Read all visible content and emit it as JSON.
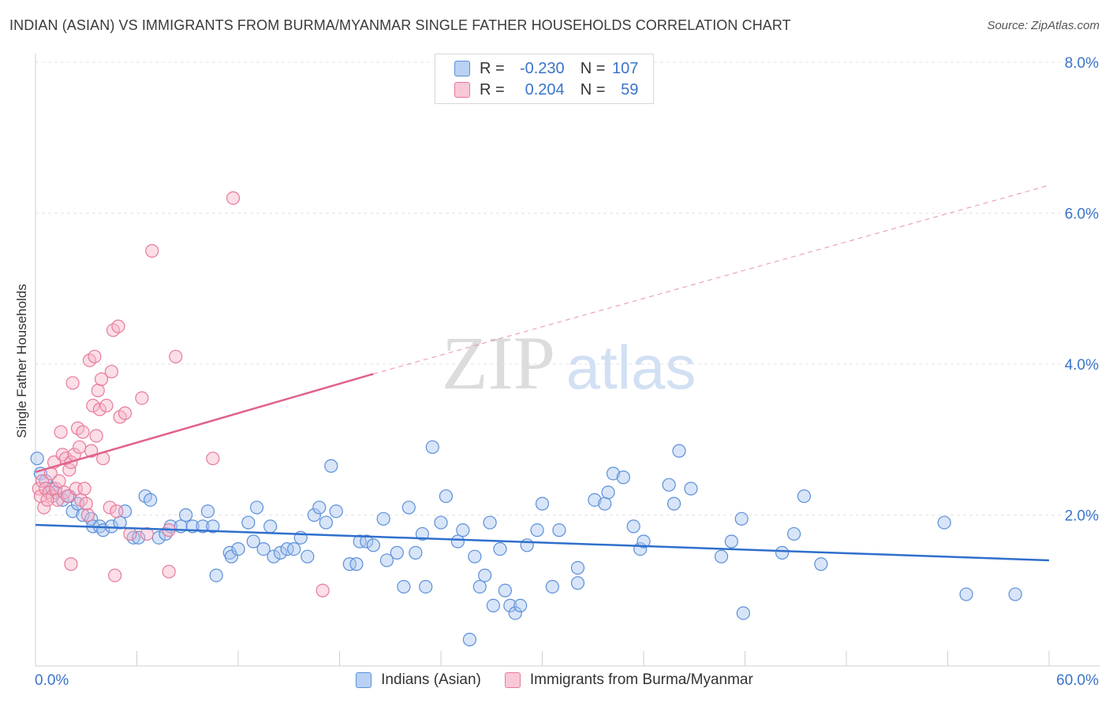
{
  "header": {
    "title": "INDIAN (ASIAN) VS IMMIGRANTS FROM BURMA/MYANMAR SINGLE FATHER HOUSEHOLDS CORRELATION CHART",
    "source": "Source: ZipAtlas.com"
  },
  "watermark": {
    "zip": "ZIP",
    "atlas": "atlas"
  },
  "legend_top": {
    "rows": [
      {
        "r_label": "R =",
        "r_value": "-0.230",
        "n_label": "N =",
        "n_value": "107"
      },
      {
        "r_label": "R =",
        "r_value": "0.204",
        "n_label": "N =",
        "n_value": "59"
      }
    ]
  },
  "legend_bottom": {
    "items": [
      {
        "label": "Indians (Asian)"
      },
      {
        "label": "Immigrants from Burma/Myanmar"
      }
    ]
  },
  "colors": {
    "blue_fill": "#a9c6ef",
    "blue_stroke": "#5b8fd9",
    "blue_line": "#2f6fcc",
    "pink_fill": "#f6b6c8",
    "pink_stroke": "#e8799b",
    "pink_line": "#e0628a",
    "tick_text": "#3a74c9",
    "grid": "#e3e3e3"
  },
  "chart_data": {
    "type": "scatter",
    "title": "INDIAN (ASIAN) VS IMMIGRANTS FROM BURMA/MYANMAR SINGLE FATHER HOUSEHOLDS CORRELATION CHART",
    "xlabel": "",
    "ylabel": "Single Father Households",
    "xlim": [
      0,
      60
    ],
    "ylim": [
      0,
      8
    ],
    "x_tick_labels": [
      "0.0%",
      "60.0%"
    ],
    "y_ticks": [
      2,
      4,
      6,
      8
    ],
    "y_tick_labels": [
      "2.0%",
      "4.0%",
      "6.0%",
      "8.0%"
    ],
    "grid": true,
    "legend_position": "bottom",
    "series": [
      {
        "name": "Indians (Asian)",
        "color": "blue",
        "points": [
          [
            0.1,
            2.75
          ],
          [
            0.3,
            2.55
          ],
          [
            0.6,
            2.45
          ],
          [
            1.0,
            2.35
          ],
          [
            1.2,
            2.3
          ],
          [
            1.6,
            2.2
          ],
          [
            2.0,
            2.25
          ],
          [
            2.2,
            2.05
          ],
          [
            2.5,
            2.15
          ],
          [
            2.8,
            2.0
          ],
          [
            3.3,
            1.95
          ],
          [
            3.4,
            1.85
          ],
          [
            3.8,
            1.85
          ],
          [
            4.0,
            1.8
          ],
          [
            4.5,
            1.85
          ],
          [
            5.0,
            1.9
          ],
          [
            5.3,
            2.05
          ],
          [
            5.8,
            1.7
          ],
          [
            6.1,
            1.7
          ],
          [
            6.5,
            2.25
          ],
          [
            6.8,
            2.2
          ],
          [
            7.3,
            1.7
          ],
          [
            7.7,
            1.75
          ],
          [
            8.0,
            1.85
          ],
          [
            8.6,
            1.85
          ],
          [
            8.9,
            2.0
          ],
          [
            9.3,
            1.85
          ],
          [
            9.9,
            1.85
          ],
          [
            10.2,
            2.05
          ],
          [
            10.5,
            1.85
          ],
          [
            10.7,
            1.2
          ],
          [
            11.5,
            1.5
          ],
          [
            11.6,
            1.45
          ],
          [
            12.0,
            1.55
          ],
          [
            12.6,
            1.9
          ],
          [
            12.9,
            1.65
          ],
          [
            13.1,
            2.1
          ],
          [
            13.5,
            1.55
          ],
          [
            13.9,
            1.85
          ],
          [
            14.1,
            1.45
          ],
          [
            14.5,
            1.5
          ],
          [
            14.9,
            1.55
          ],
          [
            15.3,
            1.55
          ],
          [
            15.7,
            1.7
          ],
          [
            16.1,
            1.45
          ],
          [
            16.5,
            2.0
          ],
          [
            16.8,
            2.1
          ],
          [
            17.2,
            1.9
          ],
          [
            17.5,
            2.65
          ],
          [
            17.8,
            2.05
          ],
          [
            18.6,
            1.35
          ],
          [
            19.0,
            1.35
          ],
          [
            19.2,
            1.65
          ],
          [
            19.6,
            1.65
          ],
          [
            20.0,
            1.6
          ],
          [
            20.6,
            1.95
          ],
          [
            20.8,
            1.4
          ],
          [
            21.4,
            1.5
          ],
          [
            21.8,
            1.05
          ],
          [
            22.1,
            2.1
          ],
          [
            22.5,
            1.5
          ],
          [
            22.9,
            1.75
          ],
          [
            23.1,
            1.05
          ],
          [
            23.5,
            2.9
          ],
          [
            24.0,
            1.9
          ],
          [
            24.3,
            2.25
          ],
          [
            25.0,
            1.65
          ],
          [
            25.3,
            1.8
          ],
          [
            25.7,
            0.35
          ],
          [
            26.0,
            1.45
          ],
          [
            26.3,
            1.05
          ],
          [
            26.6,
            1.2
          ],
          [
            26.9,
            1.9
          ],
          [
            27.1,
            0.8
          ],
          [
            27.5,
            1.55
          ],
          [
            27.8,
            1.0
          ],
          [
            28.1,
            0.8
          ],
          [
            28.4,
            0.7
          ],
          [
            28.7,
            0.8
          ],
          [
            29.1,
            1.6
          ],
          [
            29.7,
            1.8
          ],
          [
            30.0,
            2.15
          ],
          [
            30.6,
            1.05
          ],
          [
            31.0,
            1.8
          ],
          [
            32.1,
            1.3
          ],
          [
            32.1,
            1.1
          ],
          [
            33.1,
            2.2
          ],
          [
            33.7,
            2.15
          ],
          [
            33.9,
            2.3
          ],
          [
            34.2,
            2.55
          ],
          [
            34.8,
            2.5
          ],
          [
            35.4,
            1.85
          ],
          [
            35.8,
            1.55
          ],
          [
            36.0,
            1.65
          ],
          [
            37.5,
            2.4
          ],
          [
            37.8,
            2.15
          ],
          [
            38.1,
            2.85
          ],
          [
            38.8,
            2.35
          ],
          [
            40.6,
            1.45
          ],
          [
            41.2,
            1.65
          ],
          [
            41.8,
            1.95
          ],
          [
            41.9,
            0.7
          ],
          [
            44.2,
            1.5
          ],
          [
            44.9,
            1.75
          ],
          [
            45.5,
            2.25
          ],
          [
            46.5,
            1.35
          ],
          [
            53.8,
            1.9
          ],
          [
            55.1,
            0.95
          ],
          [
            58.0,
            0.95
          ]
        ]
      },
      {
        "name": "Immigrants from Burma/Myanmar",
        "color": "pink",
        "points": [
          [
            0.2,
            2.35
          ],
          [
            0.3,
            2.25
          ],
          [
            0.4,
            2.45
          ],
          [
            0.5,
            2.1
          ],
          [
            0.6,
            2.35
          ],
          [
            0.8,
            2.3
          ],
          [
            0.9,
            2.55
          ],
          [
            1.0,
            2.25
          ],
          [
            1.1,
            2.7
          ],
          [
            1.2,
            2.35
          ],
          [
            1.3,
            2.2
          ],
          [
            1.4,
            2.45
          ],
          [
            1.5,
            3.1
          ],
          [
            1.6,
            2.8
          ],
          [
            1.7,
            2.3
          ],
          [
            1.8,
            2.75
          ],
          [
            1.9,
            2.25
          ],
          [
            2.0,
            2.6
          ],
          [
            2.1,
            2.7
          ],
          [
            2.2,
            3.75
          ],
          [
            2.3,
            2.8
          ],
          [
            2.4,
            2.35
          ],
          [
            2.5,
            3.15
          ],
          [
            2.6,
            2.9
          ],
          [
            2.7,
            2.2
          ],
          [
            2.8,
            3.1
          ],
          [
            2.9,
            2.35
          ],
          [
            3.0,
            2.15
          ],
          [
            3.1,
            2.0
          ],
          [
            3.2,
            4.05
          ],
          [
            3.3,
            2.85
          ],
          [
            3.4,
            3.45
          ],
          [
            3.5,
            4.1
          ],
          [
            3.6,
            3.05
          ],
          [
            3.7,
            3.65
          ],
          [
            3.8,
            3.4
          ],
          [
            3.9,
            3.8
          ],
          [
            4.0,
            2.75
          ],
          [
            4.2,
            3.45
          ],
          [
            4.4,
            2.1
          ],
          [
            4.5,
            3.9
          ],
          [
            4.6,
            4.45
          ],
          [
            4.7,
            1.2
          ],
          [
            4.8,
            2.05
          ],
          [
            4.9,
            4.5
          ],
          [
            5.0,
            3.3
          ],
          [
            5.3,
            3.35
          ],
          [
            5.6,
            1.75
          ],
          [
            6.3,
            3.55
          ],
          [
            6.6,
            1.75
          ],
          [
            6.9,
            5.5
          ],
          [
            7.9,
            1.25
          ],
          [
            7.9,
            1.8
          ],
          [
            8.3,
            4.1
          ],
          [
            10.5,
            2.75
          ],
          [
            11.7,
            6.2
          ],
          [
            17.0,
            1.0
          ],
          [
            2.1,
            1.35
          ],
          [
            0.7,
            2.2
          ]
        ]
      }
    ],
    "trend_lines": [
      {
        "series": "Indians (Asian)",
        "x": [
          0,
          60
        ],
        "y": [
          1.87,
          1.4
        ],
        "style": "solid"
      },
      {
        "series": "Immigrants from Burma/Myanmar",
        "x": [
          0,
          20
        ],
        "y": [
          2.57,
          3.87
        ],
        "style": "solid"
      },
      {
        "series": "Immigrants from Burma/Myanmar",
        "x": [
          20,
          60
        ],
        "y": [
          3.87,
          6.37
        ],
        "style": "dashed"
      }
    ]
  }
}
